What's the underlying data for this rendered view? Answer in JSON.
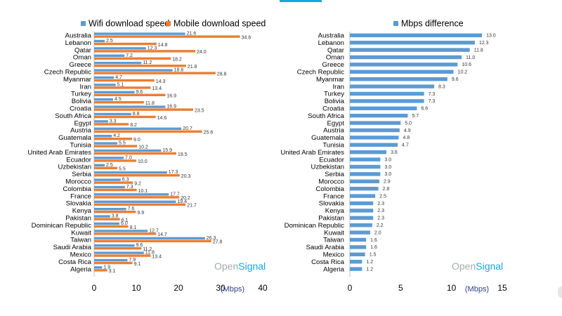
{
  "brand": {
    "name_part1": "Open",
    "name_part2": "Signal",
    "color1": "#a7a9ac",
    "color2": "#16a6e1"
  },
  "colors": {
    "wifi": "#5b9bd5",
    "mobile": "#ed7d31",
    "axis": "#bfbfbf",
    "text": "#000000",
    "unit": "#2f3f8f"
  },
  "chart_data": [
    {
      "type": "bar",
      "orientation": "horizontal",
      "categories": [
        "Australia",
        "Lebanon",
        "Qatar",
        "Oman",
        "Greece",
        "Czech Republic",
        "Myanmar",
        "Iran",
        "Turkey",
        "Bolivia",
        "Croatia",
        "South Africa",
        "Egypt",
        "Austria",
        "Guatemala",
        "Tunisia",
        "United Arab Emirates",
        "Ecuador",
        "Uzbekistan",
        "Serbia",
        "Morocco",
        "Colombia",
        "France",
        "Slovakia",
        "Kenya",
        "Pakistan",
        "Dominican Republic",
        "Kuwait",
        "Taiwan",
        "Saudi Arabia",
        "Mexico",
        "Costa Rica",
        "Algeria"
      ],
      "series": [
        {
          "name": "Wifi download speed",
          "color": "#5b9bd5",
          "values": [
            21.6,
            2.5,
            12.3,
            7.2,
            11.2,
            18.6,
            4.7,
            5.1,
            9.6,
            4.5,
            16.9,
            8.8,
            3.3,
            20.7,
            4.2,
            5.5,
            15.9,
            7.0,
            2.5,
            17.3,
            6.3,
            7.3,
            17.7,
            19.4,
            7.6,
            3.8,
            6.0,
            12.7,
            26.3,
            9.6,
            11.8,
            7.9,
            1.9
          ]
        },
        {
          "name": "Mobile download speed",
          "color": "#ed7d31",
          "values": [
            34.6,
            14.8,
            24.0,
            18.2,
            21.8,
            28.8,
            14.3,
            13.4,
            16.9,
            11.8,
            23.5,
            14.6,
            8.2,
            25.6,
            9.0,
            10.2,
            19.5,
            10.0,
            5.5,
            20.3,
            9.2,
            10.1,
            20.2,
            21.7,
            9.9,
            6.1,
            8.1,
            14.7,
            27.8,
            11.2,
            13.4,
            9.1,
            3.1
          ]
        }
      ],
      "xlim": [
        0,
        40
      ],
      "xticks": [
        "0",
        "10",
        "20",
        "30",
        "40"
      ],
      "unit_label": "(Mbps)",
      "legend_position": "top"
    },
    {
      "type": "bar",
      "orientation": "horizontal",
      "categories": [
        "Australia",
        "Lebanon",
        "Qatar",
        "Oman",
        "Greece",
        "Czech Republic",
        "Myanmar",
        "Iran",
        "Turkey",
        "Bolivia",
        "Croatia",
        "South Africa",
        "Egypt",
        "Austria",
        "Guatemala",
        "Tunisia",
        "United Arab Emirates",
        "Ecuador",
        "Uzbekistan",
        "Serbia",
        "Morocco",
        "Colombia",
        "France",
        "Slovakia",
        "Kenya",
        "Pakistan",
        "Dominican Republic",
        "Kuwait",
        "Taiwan",
        "Saudi Arabia",
        "Mexico",
        "Costa Rica",
        "Algeria"
      ],
      "series": [
        {
          "name": "Mbps difference",
          "color": "#5b9bd5",
          "values": [
            13.0,
            12.3,
            11.8,
            11.0,
            10.6,
            10.2,
            9.6,
            8.3,
            7.3,
            7.3,
            6.6,
            5.7,
            5.0,
            4.9,
            4.8,
            4.7,
            3.6,
            3.0,
            3.0,
            3.0,
            2.9,
            2.8,
            2.5,
            2.3,
            2.3,
            2.3,
            2.2,
            2.0,
            1.6,
            1.6,
            1.5,
            1.2,
            1.2
          ],
          "labels": [
            "13.0",
            "12.3",
            "11.8",
            "11.0",
            "10.6",
            "10.2",
            "9.6",
            "8.3",
            "7.3",
            "7.3",
            "6.6",
            "5.7",
            "5.0",
            "4.9",
            "4.8",
            "4.7",
            "3.6",
            "3.0",
            "3.0",
            "3.0",
            "2.9",
            "2.8",
            "2.5",
            "2.3",
            "2.3",
            "2.3",
            "2.2",
            "2.0",
            "1.6",
            "1.6",
            "1.5",
            "1.2",
            "1.2"
          ]
        }
      ],
      "xlim": [
        0,
        15
      ],
      "xticks": [
        "0",
        "5",
        "10",
        "15"
      ],
      "unit_label": "(Mbps)",
      "legend_position": "top"
    }
  ]
}
